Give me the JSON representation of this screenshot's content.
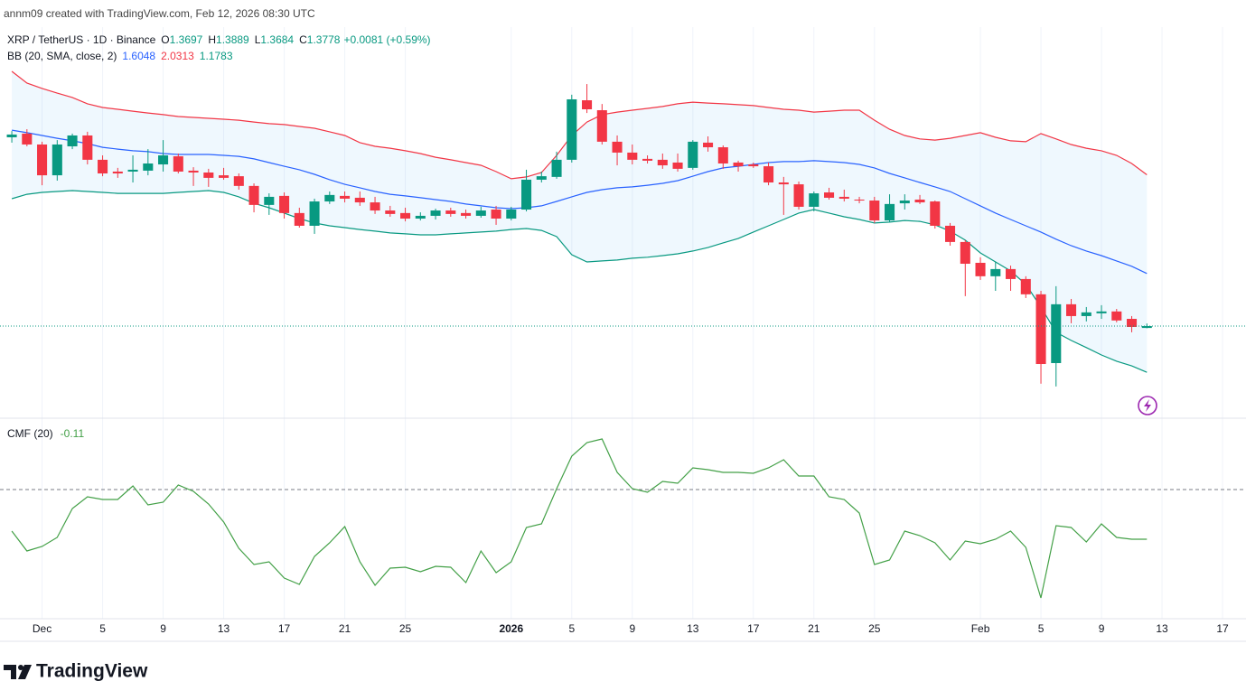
{
  "header": "annm09 created with TradingView.com, Feb 12, 2026 08:30 UTC",
  "footer_logo": "TradingView",
  "chart_data": [
    {
      "type": "candlestick",
      "symbol": "XRP / TetherUS · 1D · Binance",
      "ohlc_letters": [
        "O",
        "H",
        "L",
        "C"
      ],
      "change": "+0.0081 (+0.59%)",
      "up_color": "#089981",
      "down_color": "#f23645",
      "xlim": [
        -0.78,
        81.55
      ],
      "ylim": [
        0.98,
        2.669
      ],
      "open": [
        2.193,
        2.209,
        2.162,
        2.029,
        2.154,
        2.201,
        2.096,
        2.045,
        2.045,
        2.049,
        2.076,
        2.111,
        2.049,
        2.041,
        2.029,
        2.025,
        1.983,
        1.901,
        1.94,
        1.866,
        1.811,
        1.916,
        1.94,
        1.932,
        1.912,
        1.877,
        1.866,
        1.842,
        1.854,
        1.877,
        1.866,
        1.854,
        1.881,
        1.842,
        1.881,
        2.01,
        2.022,
        2.096,
        2.353,
        2.31,
        2.174,
        2.127,
        2.1,
        2.096,
        2.084,
        2.061,
        2.17,
        2.15,
        2.084,
        2.076,
        2.068,
        1.998,
        1.99,
        1.893,
        1.955,
        1.936,
        1.924,
        1.92,
        1.834,
        1.908,
        1.924,
        1.916,
        1.811,
        1.741,
        1.651,
        1.593,
        1.624,
        1.581,
        1.515,
        1.218,
        1.472,
        1.421,
        1.433,
        1.441,
        1.409,
        1.3697
      ],
      "high": [
        2.22,
        2.228,
        2.174,
        2.181,
        2.209,
        2.217,
        2.115,
        2.061,
        2.115,
        2.142,
        2.181,
        2.123,
        2.064,
        2.057,
        2.061,
        2.037,
        1.994,
        1.951,
        1.955,
        1.889,
        1.928,
        1.959,
        1.959,
        1.959,
        1.936,
        1.897,
        1.889,
        1.869,
        1.885,
        1.889,
        1.881,
        1.893,
        1.897,
        1.893,
        2.053,
        2.045,
        2.131,
        2.377,
        2.423,
        2.337,
        2.201,
        2.162,
        2.115,
        2.123,
        2.123,
        2.181,
        2.197,
        2.158,
        2.092,
        2.084,
        2.084,
        2.022,
        2.002,
        1.959,
        1.975,
        1.967,
        1.936,
        1.936,
        1.947,
        1.947,
        1.944,
        1.92,
        1.823,
        1.749,
        1.675,
        1.655,
        1.639,
        1.593,
        1.53,
        1.55,
        1.495,
        1.46,
        1.468,
        1.452,
        1.421,
        1.3889
      ],
      "low": [
        2.17,
        2.154,
        1.986,
        2.006,
        2.142,
        2.076,
        2.025,
        2.018,
        1.998,
        2.029,
        2.045,
        2.037,
        1.983,
        1.979,
        2.01,
        1.967,
        1.869,
        1.858,
        1.842,
        1.803,
        1.776,
        1.905,
        1.912,
        1.897,
        1.862,
        1.85,
        1.83,
        1.834,
        1.838,
        1.85,
        1.842,
        1.846,
        1.815,
        1.834,
        1.873,
        1.998,
        2.014,
        2.084,
        2.298,
        2.162,
        2.072,
        2.076,
        2.08,
        2.057,
        2.045,
        2.053,
        2.131,
        2.057,
        2.045,
        2.061,
        1.986,
        1.858,
        1.881,
        1.873,
        1.924,
        1.916,
        1.908,
        1.823,
        1.827,
        1.881,
        1.905,
        1.799,
        1.725,
        1.507,
        1.577,
        1.53,
        1.53,
        1.499,
        1.129,
        1.117,
        1.39,
        1.398,
        1.409,
        1.394,
        1.351,
        1.3684
      ],
      "close": [
        2.205,
        2.162,
        2.029,
        2.162,
        2.201,
        2.096,
        2.037,
        2.037,
        2.053,
        2.08,
        2.115,
        2.045,
        2.041,
        2.018,
        2.018,
        1.983,
        1.901,
        1.936,
        1.866,
        1.811,
        1.916,
        1.944,
        1.928,
        1.912,
        1.877,
        1.862,
        1.842,
        1.854,
        1.877,
        1.862,
        1.854,
        1.877,
        1.842,
        1.881,
        2.01,
        2.025,
        2.096,
        2.357,
        2.314,
        2.174,
        2.127,
        2.096,
        2.092,
        2.072,
        2.057,
        2.174,
        2.15,
        2.08,
        2.068,
        2.068,
        1.998,
        1.99,
        1.893,
        1.951,
        1.932,
        1.928,
        1.92,
        1.834,
        1.905,
        1.92,
        1.912,
        1.811,
        1.741,
        1.647,
        1.593,
        1.624,
        1.581,
        1.515,
        1.214,
        1.472,
        1.421,
        1.437,
        1.441,
        1.402,
        1.374,
        1.3778
      ],
      "bb_label": "BB (20, SMA, close, 2)",
      "band_fill": "rgba(33,150,243,0.07)",
      "series": [
        {
          "name": "Basis",
          "color": "#2962ff",
          "values": [
            2.224,
            2.213,
            2.201,
            2.189,
            2.178,
            2.166,
            2.15,
            2.142,
            2.135,
            2.131,
            2.123,
            2.119,
            2.119,
            2.119,
            2.115,
            2.111,
            2.1,
            2.084,
            2.068,
            2.053,
            2.033,
            2.01,
            1.99,
            1.975,
            1.959,
            1.947,
            1.94,
            1.932,
            1.924,
            1.916,
            1.905,
            1.897,
            1.889,
            1.885,
            1.889,
            1.897,
            1.916,
            1.936,
            1.955,
            1.967,
            1.975,
            1.979,
            1.986,
            1.994,
            2.006,
            2.025,
            2.045,
            2.061,
            2.068,
            2.076,
            2.084,
            2.088,
            2.088,
            2.092,
            2.088,
            2.084,
            2.076,
            2.061,
            2.037,
            2.018,
            1.998,
            1.979,
            1.959,
            1.928,
            1.897,
            1.866,
            1.838,
            1.811,
            1.784,
            1.753,
            1.725,
            1.702,
            1.682,
            1.659,
            1.636,
            1.6048
          ]
        },
        {
          "name": "Upper",
          "color": "#f23645",
          "values": [
            2.478,
            2.427,
            2.404,
            2.384,
            2.365,
            2.338,
            2.322,
            2.314,
            2.306,
            2.298,
            2.291,
            2.283,
            2.279,
            2.275,
            2.271,
            2.267,
            2.259,
            2.252,
            2.248,
            2.24,
            2.232,
            2.217,
            2.201,
            2.17,
            2.154,
            2.146,
            2.135,
            2.123,
            2.107,
            2.096,
            2.084,
            2.072,
            2.045,
            2.014,
            2.022,
            2.041,
            2.115,
            2.201,
            2.259,
            2.291,
            2.302,
            2.31,
            2.318,
            2.326,
            2.338,
            2.345,
            2.341,
            2.338,
            2.334,
            2.33,
            2.322,
            2.314,
            2.31,
            2.302,
            2.306,
            2.31,
            2.31,
            2.267,
            2.228,
            2.201,
            2.186,
            2.181,
            2.189,
            2.201,
            2.213,
            2.193,
            2.178,
            2.174,
            2.209,
            2.186,
            2.162,
            2.146,
            2.135,
            2.115,
            2.08,
            2.0313
          ]
        },
        {
          "name": "Lower",
          "color": "#089981",
          "values": [
            1.928,
            1.947,
            1.955,
            1.959,
            1.963,
            1.959,
            1.955,
            1.951,
            1.951,
            1.951,
            1.951,
            1.955,
            1.959,
            1.963,
            1.955,
            1.936,
            1.908,
            1.889,
            1.866,
            1.842,
            1.823,
            1.811,
            1.803,
            1.795,
            1.788,
            1.78,
            1.776,
            1.772,
            1.772,
            1.776,
            1.78,
            1.784,
            1.788,
            1.795,
            1.799,
            1.791,
            1.764,
            1.686,
            1.655,
            1.659,
            1.663,
            1.671,
            1.675,
            1.682,
            1.69,
            1.702,
            1.717,
            1.737,
            1.756,
            1.784,
            1.811,
            1.838,
            1.866,
            1.881,
            1.866,
            1.85,
            1.838,
            1.823,
            1.827,
            1.834,
            1.83,
            1.815,
            1.788,
            1.749,
            1.694,
            1.655,
            1.616,
            1.558,
            1.46,
            1.351,
            1.316,
            1.285,
            1.253,
            1.226,
            1.206,
            1.1783
          ]
        }
      ]
    },
    {
      "type": "line",
      "label": "CMF (20)",
      "xlim": [
        -0.78,
        81.55
      ],
      "ylim": [
        -0.286,
        0.158
      ],
      "hlines": [
        0
      ],
      "series": [
        {
          "name": "CMF",
          "color": "#43a047",
          "values": [
            -0.092,
            -0.136,
            -0.126,
            -0.106,
            -0.042,
            -0.016,
            -0.022,
            -0.022,
            0.008,
            -0.034,
            -0.028,
            0.01,
            -0.004,
            -0.032,
            -0.072,
            -0.13,
            -0.166,
            -0.16,
            -0.196,
            -0.21,
            -0.148,
            -0.118,
            -0.082,
            -0.16,
            -0.212,
            -0.174,
            -0.172,
            -0.182,
            -0.17,
            -0.172,
            -0.206,
            -0.136,
            -0.184,
            -0.16,
            -0.084,
            -0.076,
            0.002,
            0.074,
            0.104,
            0.112,
            0.038,
            0.002,
            -0.006,
            0.018,
            0.014,
            0.048,
            0.044,
            0.038,
            0.038,
            0.036,
            0.048,
            0.066,
            0.03,
            0.03,
            -0.016,
            -0.022,
            -0.052,
            -0.166,
            -0.156,
            -0.092,
            -0.102,
            -0.118,
            -0.156,
            -0.114,
            -0.12,
            -0.11,
            -0.092,
            -0.128,
            -0.24,
            -0.08,
            -0.084,
            -0.116,
            -0.076,
            -0.106,
            -0.11,
            -0.11
          ]
        }
      ],
      "xticks": [
        {
          "value": 2,
          "label": "Dec"
        },
        {
          "value": 6,
          "label": "5"
        },
        {
          "value": 10,
          "label": "9"
        },
        {
          "value": 14,
          "label": "13"
        },
        {
          "value": 18,
          "label": "17"
        },
        {
          "value": 22,
          "label": "21"
        },
        {
          "value": 26,
          "label": "25"
        },
        {
          "value": 33,
          "label": "2026"
        },
        {
          "value": 37,
          "label": "5"
        },
        {
          "value": 41,
          "label": "9"
        },
        {
          "value": 45,
          "label": "13"
        },
        {
          "value": 49,
          "label": "17"
        },
        {
          "value": 53,
          "label": "21"
        },
        {
          "value": 57,
          "label": "25"
        },
        {
          "value": 64,
          "label": "Feb"
        },
        {
          "value": 68,
          "label": "5"
        },
        {
          "value": 72,
          "label": "9"
        },
        {
          "value": 76,
          "label": "13"
        },
        {
          "value": 80,
          "label": "17"
        }
      ]
    }
  ]
}
